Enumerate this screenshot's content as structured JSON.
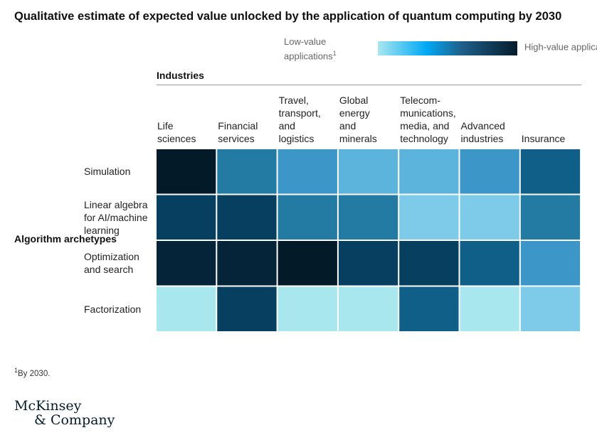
{
  "title": "Qualitative estimate of expected value unlocked by the application of quantum computing by 2030",
  "legend": {
    "low_label": "Low-value applications",
    "high_label": "High-value applications",
    "superscript": "1",
    "gradient_colors": [
      "#a9e7ef",
      "#00a9f4",
      "#1f5f8b",
      "#051c2c"
    ]
  },
  "footnote": {
    "marker": "1",
    "text": "By 2030."
  },
  "brand": {
    "line1": "McKinsey",
    "line2": "& Company"
  },
  "chart_data": {
    "type": "heatmap",
    "title": "Qualitative estimate of expected value unlocked by the application of quantum computing by 2030",
    "xlabel": "Industries",
    "ylabel": "Algorithm archetypes",
    "categories_x": [
      "Life sciences",
      "Financial services",
      "Travel, transport, and logistics",
      "Global energy and minerals",
      "Telecom-munications, media, and technology",
      "Advanced industries",
      "Insurance"
    ],
    "categories_x_display": [
      "Life\nsciences",
      "Financial\nservices",
      "Travel,\ntransport,\nand\nlogistics",
      "Global\nenergy\nand\nminerals",
      "Telecom-\nmunications,\nmedia, and\ntechnology",
      "Advanced\nindustries",
      "Insurance"
    ],
    "categories_y": [
      "Simulation",
      "Linear algebra for AI/machine learning",
      "Optimization and search",
      "Factorization"
    ],
    "categories_y_display": [
      "Simulation",
      "Linear algebra\nfor AI/machine\nlearning",
      "Optimization\nand search",
      "Factorization"
    ],
    "scale": {
      "min": 1,
      "max": 8,
      "min_label": "Low-value applications",
      "max_label": "High-value applications"
    },
    "palette": [
      "#a9e7ef",
      "#7dcbe8",
      "#5cb3db",
      "#3c96c8",
      "#237aa3",
      "#0f5f88",
      "#073f60",
      "#05243a",
      "#031a28"
    ],
    "values": [
      [
        9,
        5,
        4,
        3,
        3,
        4,
        6
      ],
      [
        7,
        7,
        5,
        5,
        2,
        2,
        5
      ],
      [
        8,
        8,
        9,
        7,
        7,
        6,
        4
      ],
      [
        1,
        7,
        1,
        1,
        6,
        1,
        2
      ]
    ]
  }
}
